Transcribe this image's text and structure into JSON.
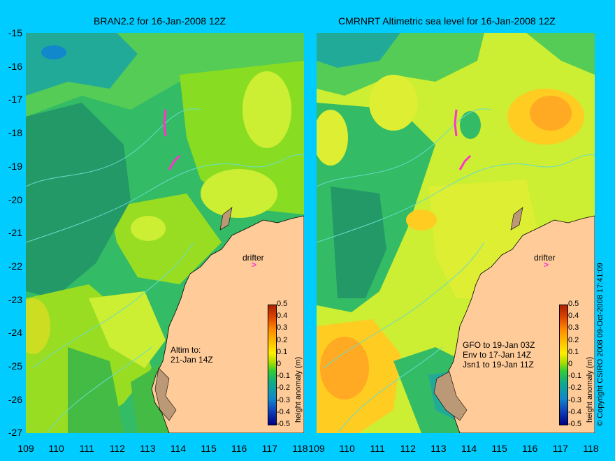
{
  "left_panel": {
    "title": "BRAN2.2 for 16-Jan-2008 12Z",
    "annotation": "Altim to:\n21-Jan 14Z",
    "drifter_label": "drifter",
    "drifter_marker": ">"
  },
  "right_panel": {
    "title": "CMRNRT Altimetric sea level  for 16-Jan-2008 12Z",
    "annotation": "GFO to 19-Jan 03Z\nEnv to 17-Jan 14Z\nJsn1 to 19-Jan 11Z",
    "drifter_label": "drifter",
    "drifter_marker": ">"
  },
  "y_axis_labels": [
    "-15",
    "-16",
    "-17",
    "-18",
    "-19",
    "-20",
    "-21",
    "-22",
    "-23",
    "-24",
    "-25",
    "-26",
    "-27"
  ],
  "left_x_labels": [
    "109",
    "110",
    "111",
    "112",
    "113",
    "114",
    "115",
    "116",
    "117",
    "118"
  ],
  "right_x_labels": [
    "109",
    "110",
    "111",
    "112",
    "113",
    "114",
    "115",
    "116",
    "117",
    "118"
  ],
  "colorbar": {
    "title": "height anomaly (m)",
    "ticks": [
      "0.5",
      "0.4",
      "0.3",
      "0.2",
      "0.1",
      "0",
      "-0.1",
      "-0.2",
      "-0.3",
      "-0.4",
      "-0.5"
    ]
  },
  "copyright": "© Copyright CSIRO 2008   09-Oct-2008 17:41:09",
  "colors": {
    "background": "#00ccff",
    "land": "#ffcc99",
    "drifter": "#ff33cc"
  }
}
